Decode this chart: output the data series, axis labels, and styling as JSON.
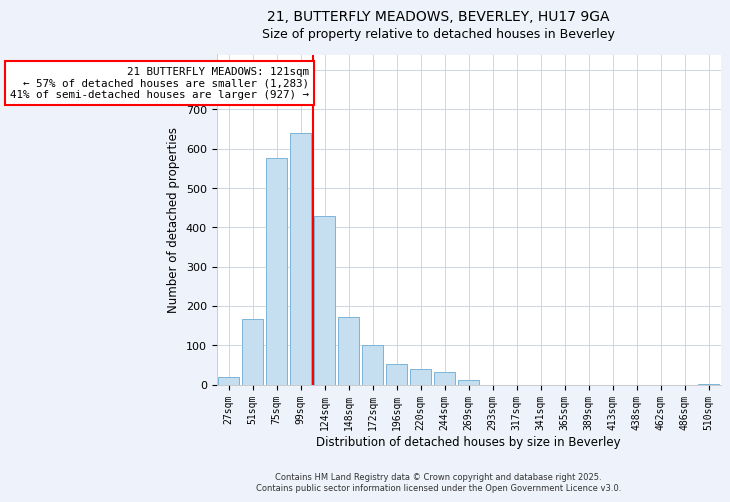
{
  "title": "21, BUTTERFLY MEADOWS, BEVERLEY, HU17 9GA",
  "subtitle": "Size of property relative to detached houses in Beverley",
  "xlabel": "Distribution of detached houses by size in Beverley",
  "ylabel": "Number of detached properties",
  "bar_color": "#c5dff0",
  "bar_edge_color": "#7ab5d8",
  "categories": [
    "27sqm",
    "51sqm",
    "75sqm",
    "99sqm",
    "124sqm",
    "148sqm",
    "172sqm",
    "196sqm",
    "220sqm",
    "244sqm",
    "269sqm",
    "293sqm",
    "317sqm",
    "341sqm",
    "365sqm",
    "389sqm",
    "413sqm",
    "438sqm",
    "462sqm",
    "486sqm",
    "510sqm"
  ],
  "values": [
    20,
    168,
    577,
    640,
    430,
    172,
    101,
    51,
    40,
    33,
    12,
    0,
    0,
    0,
    0,
    0,
    0,
    0,
    0,
    0,
    2
  ],
  "ylim": [
    0,
    840
  ],
  "yticks": [
    0,
    100,
    200,
    300,
    400,
    500,
    600,
    700,
    800
  ],
  "property_line_x": 3.5,
  "property_line_label": "21 BUTTERFLY MEADOWS: 121sqm",
  "annotation_line1": "← 57% of detached houses are smaller (1,283)",
  "annotation_line2": "41% of semi-detached houses are larger (927) →",
  "box_facecolor": "white",
  "box_edgecolor": "red",
  "line_color": "red",
  "footer_line1": "Contains HM Land Registry data © Crown copyright and database right 2025.",
  "footer_line2": "Contains public sector information licensed under the Open Government Licence v3.0.",
  "background_color": "#eef2fa",
  "plot_bg_color": "white",
  "grid_color": "#c8d0dc",
  "title_fontsize": 10,
  "subtitle_fontsize": 9
}
